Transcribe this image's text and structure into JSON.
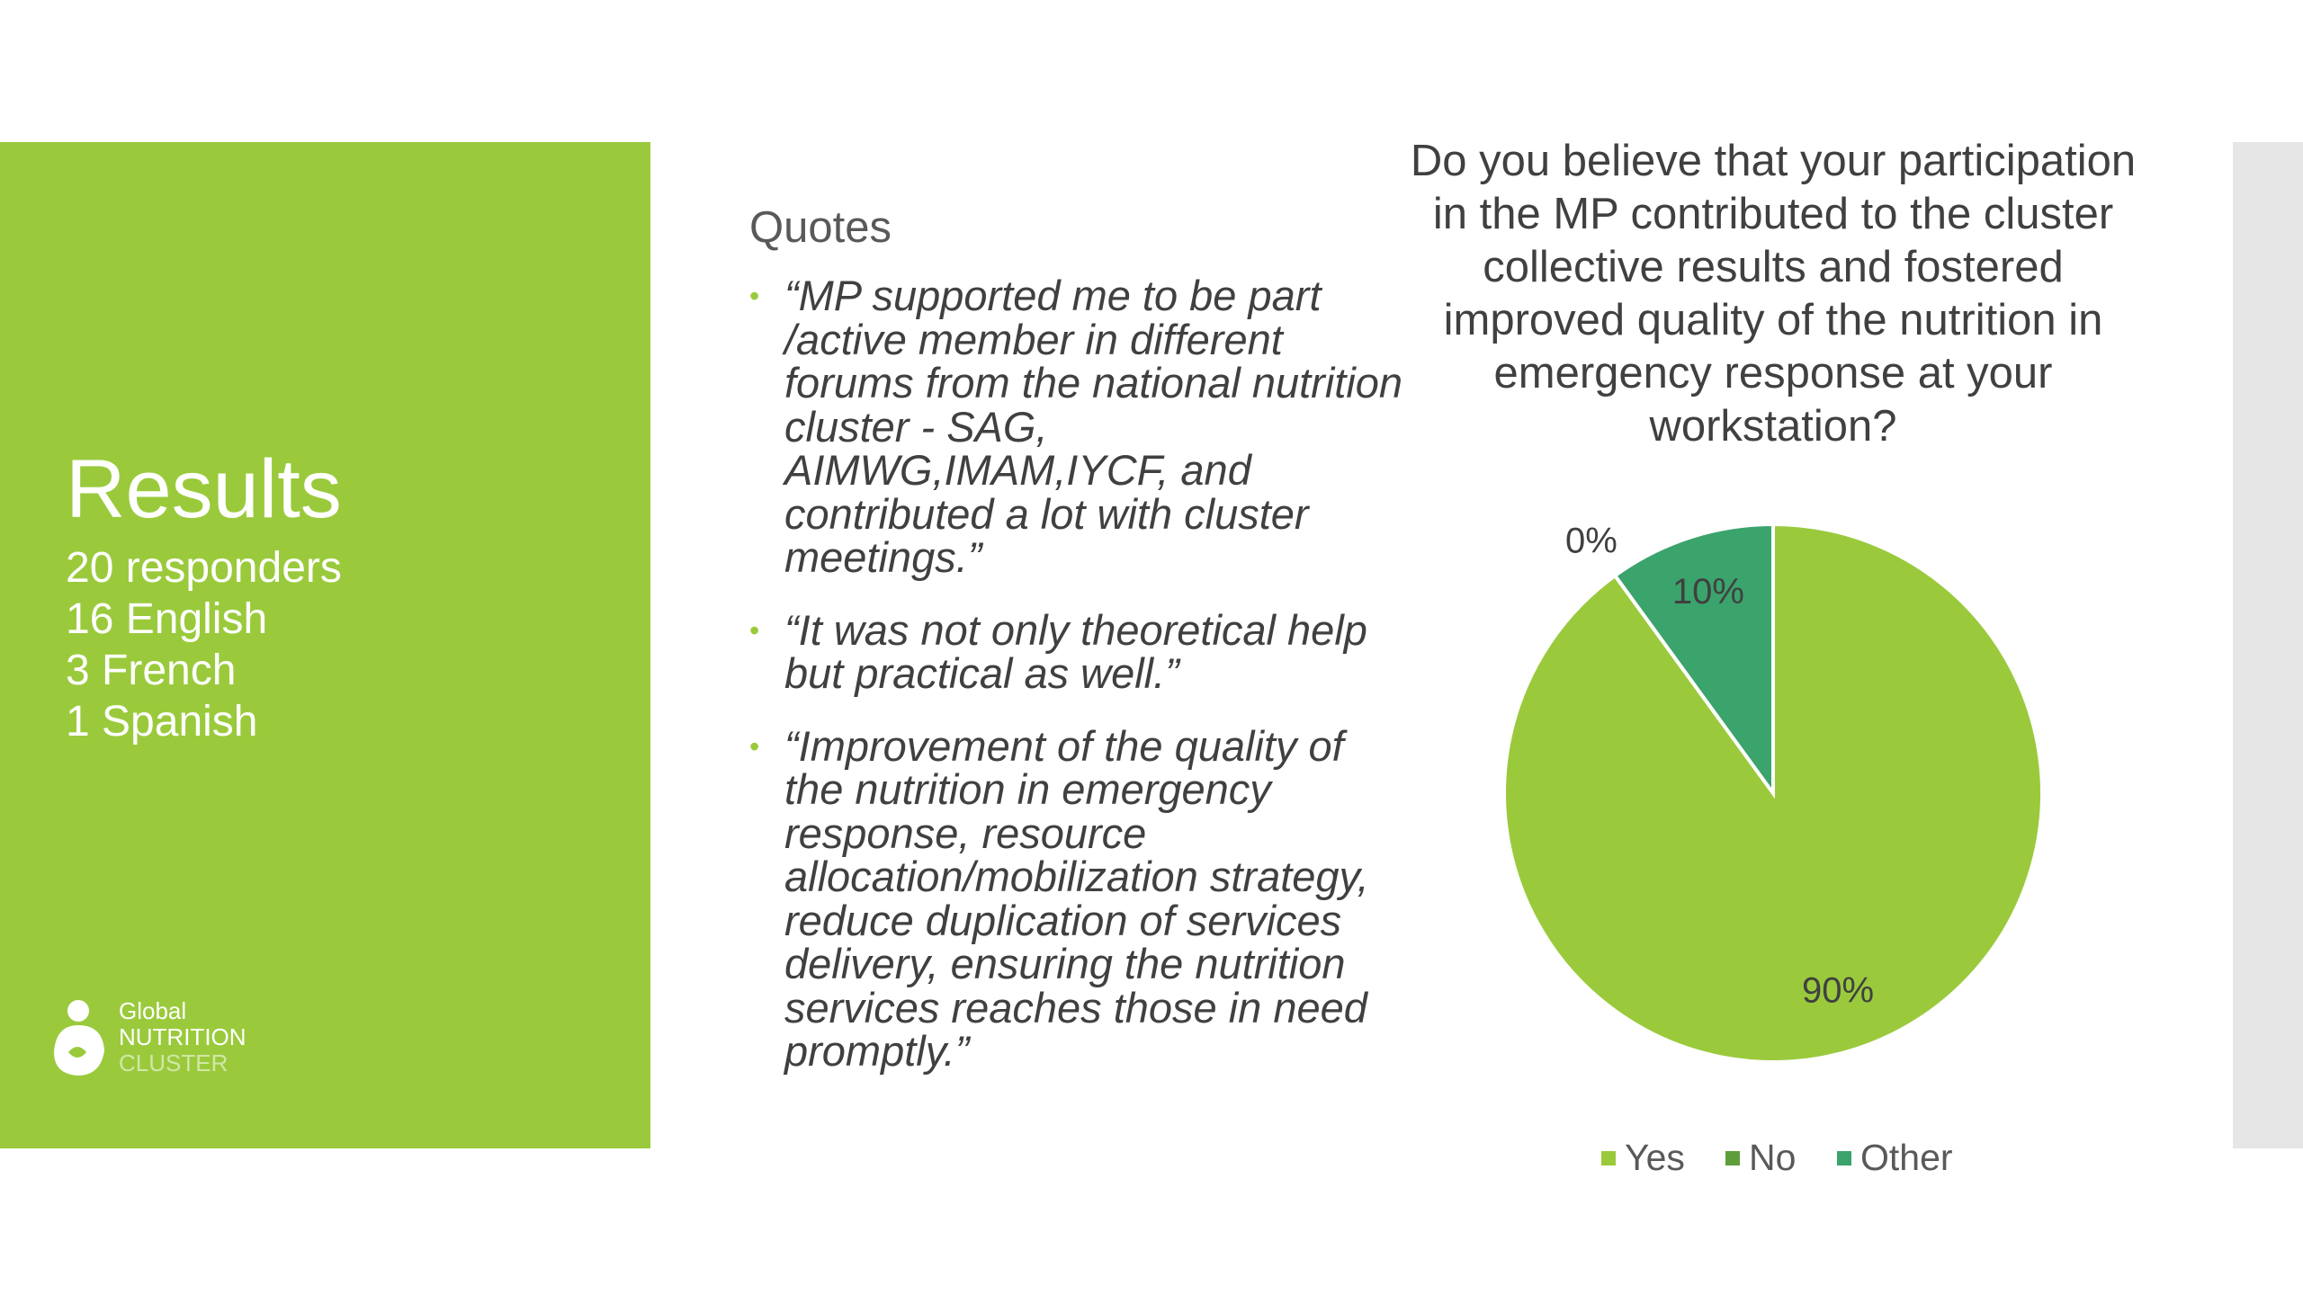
{
  "panel": {
    "title": "Results",
    "lines": [
      "20 responders",
      "16 English",
      "3 French",
      "1 Spanish"
    ],
    "logo": [
      "Global",
      "NUTRITION",
      "CLUSTER"
    ]
  },
  "quotes": {
    "heading": "Quotes",
    "items": [
      "“MP supported me to be part /active member in different forums from the national nutrition cluster - SAG, AIMWG,IMAM,IYCF, and contributed a lot with cluster meetings.”",
      "“It was not only theoretical help but practical as well.”",
      "“Improvement of the quality of the nutrition in emergency response, resource allocation/mobilization strategy, reduce duplication of services delivery, ensuring the nutrition services reaches those in need promptly.”"
    ]
  },
  "chart_data": {
    "type": "pie",
    "title": "Do you believe that your participation in the MP contributed to the cluster collective results and fostered improved quality of the nutrition in emergency response at your workstation?",
    "categories": [
      "Yes",
      "No",
      "Other"
    ],
    "values": [
      90,
      0,
      10
    ],
    "value_labels": [
      "90%",
      "0%",
      "10%"
    ],
    "colors": [
      "#9aca3c",
      "#5e9e3a",
      "#3ba36c"
    ],
    "legend": "bottom"
  }
}
